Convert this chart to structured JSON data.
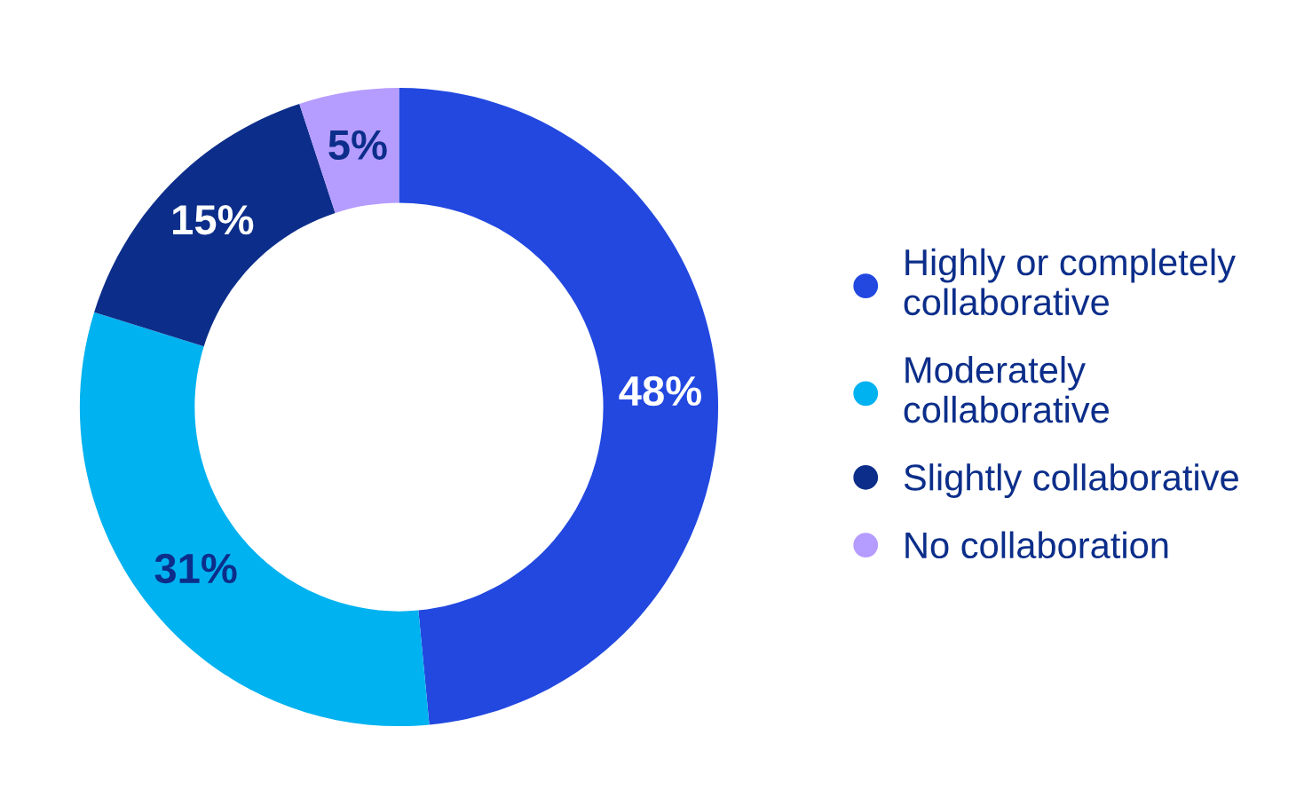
{
  "chart_data": {
    "type": "donut",
    "categories": [
      "Highly or completely\ncollaborative",
      "Moderately\ncollaborative",
      "Slightly collaborative",
      "No collaboration"
    ],
    "values": [
      48,
      31,
      15,
      5
    ],
    "colors": [
      "#2248e0",
      "#00b2f0",
      "#0c2e8a",
      "#b59cff"
    ],
    "value_labels": [
      "48%",
      "31%",
      "15%",
      "5%"
    ],
    "legend": "right"
  }
}
